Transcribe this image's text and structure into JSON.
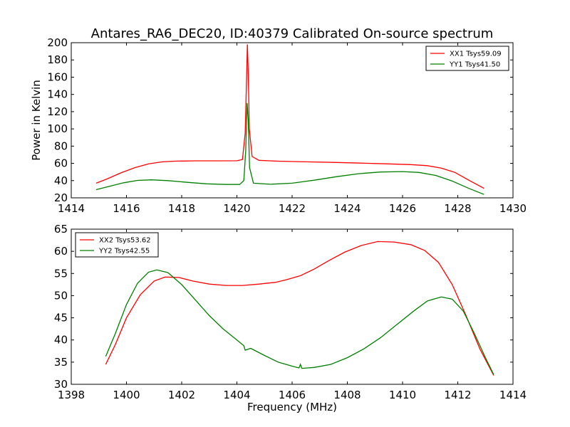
{
  "figure_title": "Antares_RA6_DEC20, ID:40379 Calibrated On-source spectrum",
  "chart_data": [
    {
      "type": "line",
      "title": "Antares_RA6_DEC20, ID:40379 Calibrated On-source spectrum",
      "xlabel": "",
      "ylabel": "Power in Kelvin",
      "xlim": [
        1414,
        1430
      ],
      "ylim": [
        20,
        200
      ],
      "xticks": [
        1414,
        1416,
        1418,
        1420,
        1422,
        1424,
        1426,
        1428,
        1430
      ],
      "yticks": [
        20,
        40,
        60,
        80,
        100,
        120,
        140,
        160,
        180,
        200
      ],
      "grid": false,
      "legend_position": "top-right",
      "series": [
        {
          "name": "XX1 Tsys59.09",
          "color": "#ff0000",
          "points": [
            [
              1414.9,
              37
            ],
            [
              1415.3,
              42
            ],
            [
              1415.8,
              49
            ],
            [
              1416.3,
              55
            ],
            [
              1416.8,
              59.5
            ],
            [
              1417.3,
              61.8
            ],
            [
              1417.8,
              62.6
            ],
            [
              1418.5,
              62.9
            ],
            [
              1419.3,
              62.9
            ],
            [
              1420.0,
              63
            ],
            [
              1420.2,
              64.5
            ],
            [
              1420.3,
              95
            ],
            [
              1420.35,
              160
            ],
            [
              1420.38,
              198
            ],
            [
              1420.41,
              165
            ],
            [
              1420.45,
              100
            ],
            [
              1420.55,
              68
            ],
            [
              1420.8,
              63.5
            ],
            [
              1421.5,
              62.5
            ],
            [
              1422.5,
              61.8
            ],
            [
              1423.5,
              61.1
            ],
            [
              1424.5,
              60.3
            ],
            [
              1425.5,
              59.4
            ],
            [
              1426.3,
              58.6
            ],
            [
              1426.9,
              57.3
            ],
            [
              1427.4,
              54.5
            ],
            [
              1427.9,
              49.5
            ],
            [
              1428.4,
              40.5
            ],
            [
              1428.95,
              31
            ]
          ]
        },
        {
          "name": "YY1 Tsys41.50",
          "color": "#008000",
          "points": [
            [
              1414.9,
              29.5
            ],
            [
              1415.4,
              33.5
            ],
            [
              1415.9,
              37.5
            ],
            [
              1416.4,
              40.2
            ],
            [
              1416.9,
              40.9
            ],
            [
              1417.5,
              40
            ],
            [
              1418.2,
              38
            ],
            [
              1418.9,
              36.3
            ],
            [
              1419.6,
              35.5
            ],
            [
              1420.1,
              35.5
            ],
            [
              1420.25,
              40
            ],
            [
              1420.32,
              75
            ],
            [
              1420.37,
              130
            ],
            [
              1420.41,
              110
            ],
            [
              1420.46,
              55
            ],
            [
              1420.6,
              37
            ],
            [
              1421.2,
              35.8
            ],
            [
              1422.0,
              37
            ],
            [
              1422.8,
              40.5
            ],
            [
              1423.6,
              44.5
            ],
            [
              1424.4,
              48
            ],
            [
              1425.2,
              50
            ],
            [
              1426.0,
              50.5
            ],
            [
              1426.6,
              49.5
            ],
            [
              1427.2,
              46
            ],
            [
              1427.8,
              39.5
            ],
            [
              1428.4,
              31
            ],
            [
              1428.95,
              24
            ]
          ]
        }
      ]
    },
    {
      "type": "line",
      "title": "",
      "xlabel": "Frequency (MHz)",
      "ylabel": "",
      "xlim": [
        1398,
        1414
      ],
      "ylim": [
        30,
        65
      ],
      "xticks": [
        1398,
        1400,
        1402,
        1404,
        1406,
        1408,
        1410,
        1412,
        1414
      ],
      "yticks": [
        30,
        35,
        40,
        45,
        50,
        55,
        60,
        65
      ],
      "grid": false,
      "legend_position": "top-left",
      "series": [
        {
          "name": "XX2 Tsys53.62",
          "color": "#ff0000",
          "points": [
            [
              1399.25,
              34.5
            ],
            [
              1399.6,
              39
            ],
            [
              1400.0,
              45
            ],
            [
              1400.5,
              50.2
            ],
            [
              1401.0,
              53.3
            ],
            [
              1401.4,
              54.2
            ],
            [
              1401.9,
              54.1
            ],
            [
              1402.4,
              53.3
            ],
            [
              1403.0,
              52.6
            ],
            [
              1403.6,
              52.3
            ],
            [
              1404.2,
              52.3
            ],
            [
              1404.8,
              52.6
            ],
            [
              1405.4,
              53
            ],
            [
              1405.8,
              53.6
            ],
            [
              1406.3,
              54.5
            ],
            [
              1406.8,
              56
            ],
            [
              1407.3,
              57.8
            ],
            [
              1407.9,
              59.8
            ],
            [
              1408.5,
              61.3
            ],
            [
              1409.1,
              62.2
            ],
            [
              1409.7,
              62.1
            ],
            [
              1410.3,
              61.5
            ],
            [
              1410.8,
              60.2
            ],
            [
              1411.3,
              57.5
            ],
            [
              1411.8,
              52.5
            ],
            [
              1412.3,
              45.5
            ],
            [
              1412.8,
              38
            ],
            [
              1413.3,
              32
            ]
          ]
        },
        {
          "name": "YY2 Tsys42.55",
          "color": "#008000",
          "points": [
            [
              1399.25,
              36.3
            ],
            [
              1399.6,
              41.5
            ],
            [
              1400.0,
              48
            ],
            [
              1400.4,
              52.8
            ],
            [
              1400.8,
              55.3
            ],
            [
              1401.1,
              55.8
            ],
            [
              1401.5,
              55.2
            ],
            [
              1402.0,
              52.5
            ],
            [
              1402.5,
              49
            ],
            [
              1403.0,
              45.5
            ],
            [
              1403.5,
              42.5
            ],
            [
              1404.0,
              40
            ],
            [
              1404.25,
              38.7
            ],
            [
              1404.3,
              37.7
            ],
            [
              1404.5,
              38.1
            ],
            [
              1405.0,
              36.5
            ],
            [
              1405.5,
              35
            ],
            [
              1406.0,
              34.1
            ],
            [
              1406.25,
              33.7
            ],
            [
              1406.3,
              34.5
            ],
            [
              1406.35,
              33.6
            ],
            [
              1406.8,
              33.8
            ],
            [
              1407.4,
              34.5
            ],
            [
              1408.0,
              36
            ],
            [
              1408.6,
              38
            ],
            [
              1409.2,
              40.5
            ],
            [
              1409.8,
              43.5
            ],
            [
              1410.4,
              46.5
            ],
            [
              1410.9,
              48.8
            ],
            [
              1411.4,
              49.7
            ],
            [
              1411.8,
              49.2
            ],
            [
              1412.2,
              46.5
            ],
            [
              1412.6,
              41.5
            ],
            [
              1413.0,
              36
            ],
            [
              1413.3,
              32.2
            ]
          ]
        }
      ]
    }
  ]
}
